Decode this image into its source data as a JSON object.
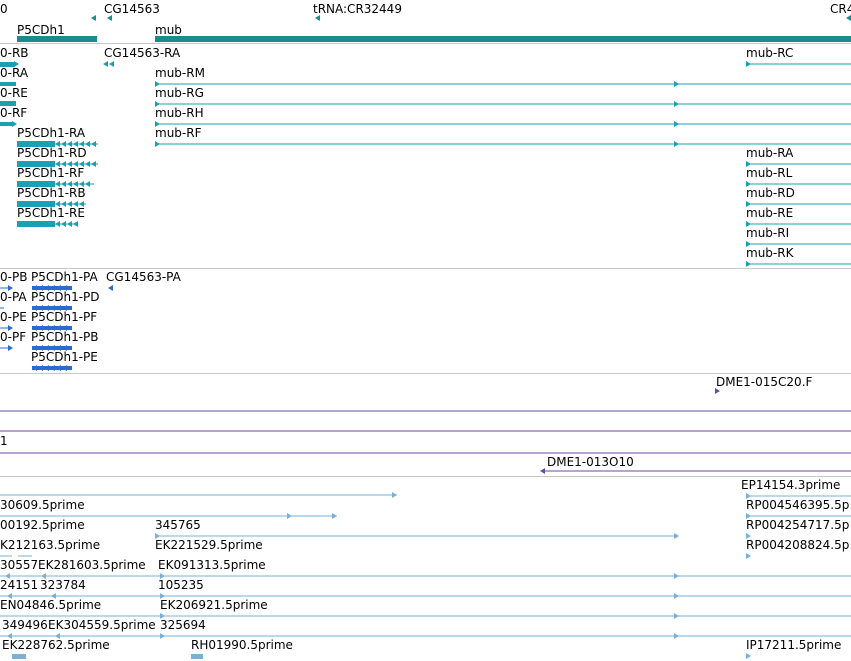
{
  "gene_track": {
    "header_labels": [
      "0",
      "CG14563",
      "tRNA:CR32449",
      "CR4"
    ],
    "gene_names": [
      "P5CDh1",
      "mub"
    ]
  },
  "transcripts": [
    "0-RB",
    "0-RA",
    "0-RE",
    "0-RF",
    "CG14563-RA",
    "mub-RM",
    "mub-RG",
    "mub-RH",
    "mub-RF",
    "P5CDh1-RA",
    "P5CDh1-RD",
    "P5CDh1-RF",
    "P5CDh1-RB",
    "P5CDh1-RE",
    "mub-RC",
    "mub-RA",
    "mub-RL",
    "mub-RD",
    "mub-RE",
    "mub-RI",
    "mub-RK"
  ],
  "proteins": [
    "0-PB",
    "0-PA",
    "0-PE",
    "0-PF",
    "P5CDh1-PA",
    "P5CDh1-PD",
    "P5CDh1-PF",
    "P5CDh1-PB",
    "P5CDh1-PE",
    "CG14563-PA"
  ],
  "clones": [
    "DME1-015C20.F",
    "1",
    "DME1-013O10"
  ],
  "ests": [
    "30609.5prime",
    "00192.5prime",
    "345765",
    "K212163.5prime",
    "EK221529.5prime",
    "30557",
    "EK281603.5prime",
    "EK091313.5prime",
    "24151",
    "323784",
    "105235",
    "EN04846.5prime",
    "EK206921.5prime",
    "349496",
    "EK304559.5prime",
    "325694",
    "EK228762.5prime",
    "RH01990.5prime",
    "EP14154.3prime",
    "RP004546395.5p",
    "RP004254717.5p",
    "RP004208824.5p",
    "IP17211.5prime"
  ],
  "colors": {
    "gene": "#1a8c8c",
    "transcript": "#1aa0b4",
    "protein": "#2c6ad0",
    "clone": "#6a4aa8",
    "est": "#7ab0d8",
    "divider": "#c8c8c8"
  }
}
